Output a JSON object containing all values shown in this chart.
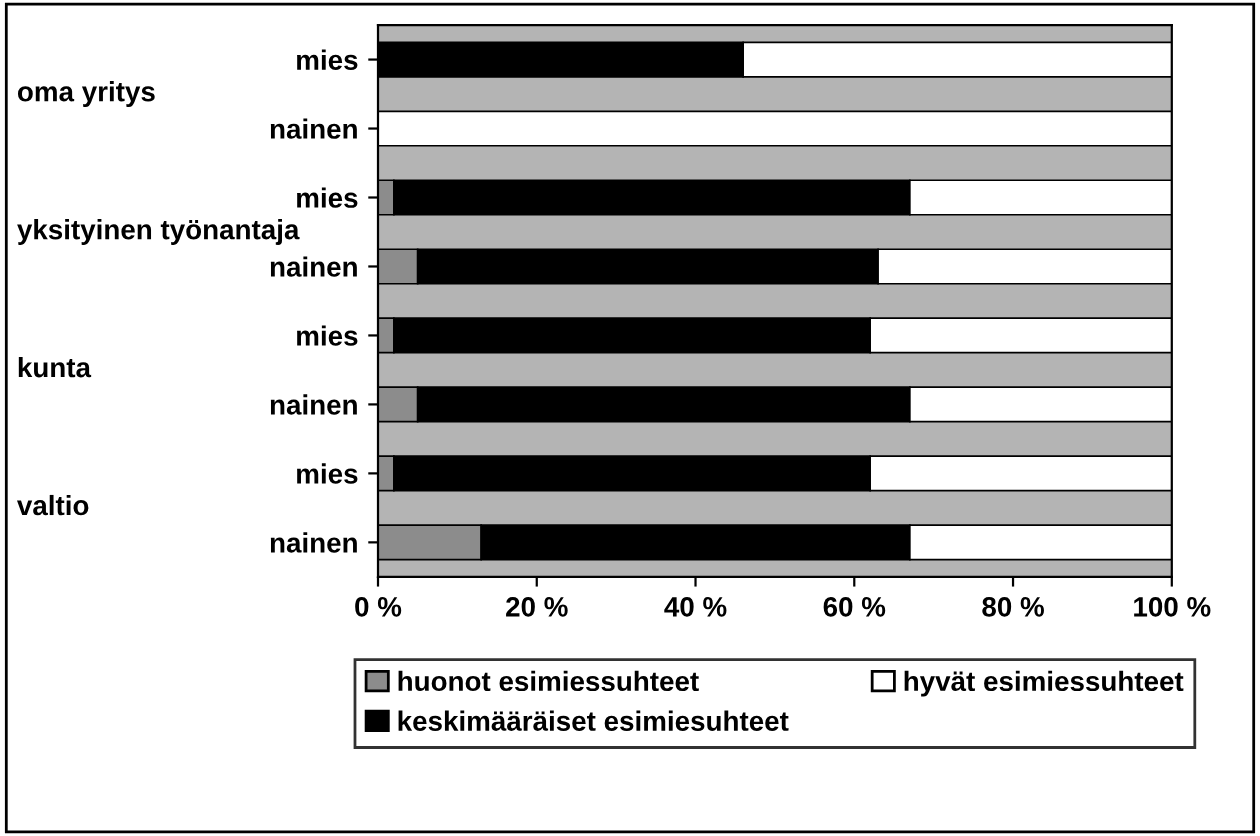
{
  "chart_data": {
    "type": "bar",
    "orientation": "horizontal",
    "stacked": true,
    "categories": [
      "mies",
      "nainen",
      "mies",
      "nainen",
      "mies",
      "nainen",
      "mies",
      "nainen"
    ],
    "annotations": [
      "oma yritys",
      "yksityinen työnantaja",
      "kunta",
      "valtio"
    ],
    "series": [
      {
        "name": "huonot esimiessuhteet",
        "color": "#8c8c8c",
        "values": [
          0,
          0,
          2,
          5,
          2,
          5,
          2,
          13
        ]
      },
      {
        "name": "keskimääräiset esimiesuhteet",
        "color": "#000000",
        "values": [
          46,
          0,
          65,
          58,
          60,
          62,
          60,
          54
        ]
      },
      {
        "name": "hyvät esimiessuhteet",
        "color": "#ffffff",
        "values": [
          54,
          100,
          33,
          37,
          38,
          33,
          38,
          33
        ]
      }
    ],
    "xlim": [
      0,
      100
    ],
    "xticks": [
      {
        "value": 0,
        "label": "0 %"
      },
      {
        "value": 20,
        "label": "20 %"
      },
      {
        "value": 40,
        "label": "40 %"
      },
      {
        "value": 60,
        "label": "60 %"
      },
      {
        "value": 80,
        "label": "80 %"
      },
      {
        "value": 100,
        "label": "100 %"
      }
    ],
    "grid": false,
    "legend": "bottom"
  }
}
